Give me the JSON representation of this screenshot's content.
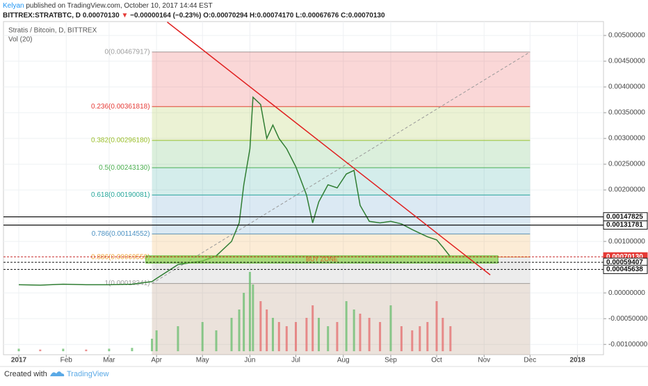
{
  "header": {
    "author": "Kelyan",
    "published": " published on TradingView.com, October 10, 2017 14:44 EST",
    "symbol": "BITTREX:STRATBTC, D",
    "last": "0.00070130",
    "arrow": "▼",
    "change": "−0.00000164 (−0.23%)",
    "ohlc": "O:0.00070294 H:0.00074170 L:0.00067676 C:0.00070130"
  },
  "chart_data": {
    "type": "line",
    "title": "Stratis / Bitcoin, D, BITTREX",
    "subtitle": "Vol (20)",
    "x": [
      1,
      15,
      30,
      45,
      60,
      75,
      88,
      91,
      105,
      121,
      130,
      140,
      145,
      148,
      152,
      154,
      159,
      163,
      167,
      171,
      176,
      182,
      189,
      193,
      197,
      203,
      209,
      215,
      220,
      224,
      230,
      237,
      244,
      251,
      258,
      263,
      268,
      274,
      278,
      283
    ],
    "series": [
      {
        "color": "#2f7d32",
        "values": [
          0.00016,
          0.00015,
          0.00017,
          0.00016,
          0.00016,
          0.00017,
          0.00022,
          0.00028,
          0.00055,
          0.00062,
          0.00072,
          0.001,
          0.00136,
          0.0021,
          0.0028,
          0.0038,
          0.00366,
          0.003,
          0.00326,
          0.003,
          0.0028,
          0.00245,
          0.0019,
          0.00136,
          0.00177,
          0.0021,
          0.00204,
          0.00231,
          0.00238,
          0.0017,
          0.00139,
          0.00136,
          0.00139,
          0.00134,
          0.00123,
          0.00116,
          0.00109,
          0.00103,
          0.00089,
          0.0007013
        ]
      }
    ],
    "volume": {
      "axis": "y2",
      "up_color": "#6fbf73",
      "down_color": "#e57373",
      "values": [
        3,
        2,
        3,
        2,
        3,
        4,
        15,
        25,
        30,
        35,
        25,
        40,
        50,
        70,
        95,
        80,
        60,
        50,
        40,
        35,
        30,
        35,
        40,
        55,
        40,
        30,
        35,
        60,
        50,
        45,
        40,
        35,
        55,
        30,
        25,
        30,
        35,
        60,
        40,
        30
      ]
    },
    "y2lim": [
      0,
      100
    ],
    "xlim": [
      -9,
      383
    ],
    "xticks": [
      {
        "value": 1,
        "label": "2017"
      },
      {
        "value": 32,
        "label": "Feb"
      },
      {
        "value": 60,
        "label": "Mar"
      },
      {
        "value": 91,
        "label": "Apr"
      },
      {
        "value": 121,
        "label": "May"
      },
      {
        "value": 152,
        "label": "Jun"
      },
      {
        "value": 182,
        "label": "Jul"
      },
      {
        "value": 213,
        "label": "Aug"
      },
      {
        "value": 244,
        "label": "Sep"
      },
      {
        "value": 274,
        "label": "Oct"
      },
      {
        "value": 305,
        "label": "Nov"
      },
      {
        "value": 335,
        "label": "Dec"
      },
      {
        "value": 366,
        "label": "2018"
      }
    ],
    "ylim": [
      -0.0012,
      0.00527
    ],
    "yticks": [
      {
        "value": 0.005,
        "label": "0.00500000"
      },
      {
        "value": 0.0045,
        "label": "0.00450000"
      },
      {
        "value": 0.004,
        "label": "0.00400000"
      },
      {
        "value": 0.0035,
        "label": "0.00350000"
      },
      {
        "value": 0.003,
        "label": "0.00300000"
      },
      {
        "value": 0.0025,
        "label": "0.00250000"
      },
      {
        "value": 0.002,
        "label": "0.00200000"
      },
      {
        "value": 0.001,
        "label": "0.00100000"
      },
      {
        "value": 0,
        "label": "0.00000000"
      },
      {
        "value": -0.0005,
        "label": "-0.00050000"
      },
      {
        "value": -0.001,
        "label": "-0.00100000"
      }
    ],
    "grid": true,
    "fib": {
      "x": [
        88,
        335
      ],
      "levels": [
        {
          "value": 0.00467917,
          "label": "0(0.00467917)",
          "color": "#9e9e9e"
        },
        {
          "value": 0.00361818,
          "label": "0.236(0.00361818)",
          "color": "#e53935"
        },
        {
          "value": 0.0029618,
          "label": "0.382(0.00296180)",
          "color": "#9bbf2a"
        },
        {
          "value": 0.0024313,
          "label": "0.5(0.00243130)",
          "color": "#4caf50"
        },
        {
          "value": 0.00190081,
          "label": "0.618(0.00190081)",
          "color": "#26a69a"
        },
        {
          "value": 0.00114552,
          "label": "0.786(0.00114552)",
          "color": "#4a90c2"
        },
        {
          "value": 0.00069559,
          "label": "0.886(0.00069559)",
          "color": "#f0a030"
        },
        {
          "value": 0.00018341,
          "label": "1(0.00018341)",
          "color": "#9e9e9e"
        }
      ]
    },
    "hlines": [
      {
        "value": 0.00147825,
        "label": "0.00147825",
        "style": "solid"
      },
      {
        "value": 0.00131781,
        "label": "0.00131781",
        "style": "solid"
      },
      {
        "value": 0.0007013,
        "label": "0.00070130",
        "style": "current"
      },
      {
        "value": 0.00059407,
        "label": "0.00059407",
        "style": "dashed"
      },
      {
        "value": 0.00045638,
        "label": "0.00045638",
        "style": "dashed"
      }
    ],
    "trendline": {
      "x": [
        98,
        309
      ],
      "y": [
        0.00526,
        0.00035
      ],
      "color": "#e02020"
    },
    "zone": {
      "label": "BUY ZONE",
      "x": [
        84,
        314
      ],
      "y": [
        0.00058,
        0.00072
      ],
      "color": "#8bd34a"
    }
  },
  "footer": {
    "created": "Created with",
    "brand": "TradingView"
  }
}
